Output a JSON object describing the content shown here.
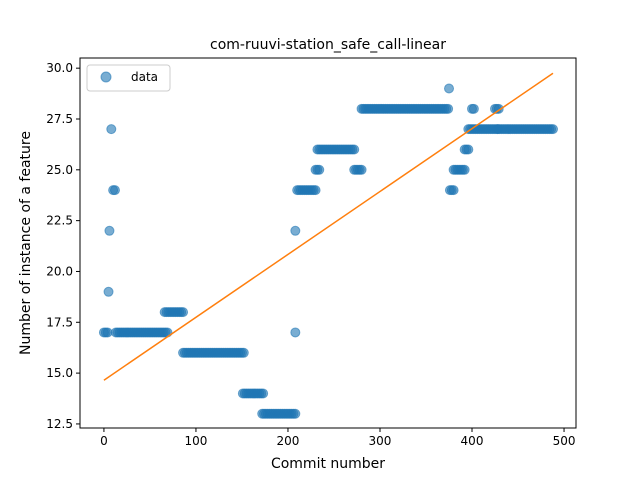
{
  "chart_data": {
    "type": "scatter",
    "title": "com-ruuvi-station_safe_call-linear",
    "xlabel": "Commit number",
    "ylabel": "Number of instance of a feature",
    "xlim": [
      -26,
      513
    ],
    "ylim": [
      12.3,
      30.5
    ],
    "x_ticks": [
      0,
      100,
      200,
      300,
      400,
      500
    ],
    "y_ticks": [
      12.5,
      15.0,
      17.5,
      20.0,
      22.5,
      25.0,
      27.5,
      30.0
    ],
    "x_tick_labels": [
      "0",
      "100",
      "200",
      "300",
      "400",
      "500"
    ],
    "y_tick_labels": [
      "12.5",
      "15.0",
      "17.5",
      "20.0",
      "22.5",
      "25.0",
      "27.5",
      "30.0"
    ],
    "grid": false,
    "legend_position": "top-left",
    "series": [
      {
        "name": "data",
        "marker": "circle",
        "color": "#1f77b4",
        "segments": [
          {
            "x_start": 0,
            "x_end": 4,
            "y": 17
          },
          {
            "x_start": 5,
            "x_end": 5,
            "y": 19
          },
          {
            "x_start": 6,
            "x_end": 7,
            "y": 22
          },
          {
            "x_start": 8,
            "x_end": 9,
            "y": 27
          },
          {
            "x_start": 10,
            "x_end": 12,
            "y": 24
          },
          {
            "x_start": 13,
            "x_end": 70,
            "y": 17
          },
          {
            "x_start": 66,
            "x_end": 86,
            "y": 18
          },
          {
            "x_start": 86,
            "x_end": 152,
            "y": 16
          },
          {
            "x_start": 151,
            "x_end": 173,
            "y": 14
          },
          {
            "x_start": 172,
            "x_end": 208,
            "y": 13
          },
          {
            "x_start": 208,
            "x_end": 208,
            "y": 17
          },
          {
            "x_start": 208,
            "x_end": 208,
            "y": 22
          },
          {
            "x_start": 210,
            "x_end": 231,
            "y": 24
          },
          {
            "x_start": 230,
            "x_end": 234,
            "y": 25
          },
          {
            "x_start": 232,
            "x_end": 272,
            "y": 26
          },
          {
            "x_start": 272,
            "x_end": 280,
            "y": 25
          },
          {
            "x_start": 280,
            "x_end": 375,
            "y": 28
          },
          {
            "x_start": 375,
            "x_end": 375,
            "y": 29
          },
          {
            "x_start": 376,
            "x_end": 380,
            "y": 24
          },
          {
            "x_start": 380,
            "x_end": 392,
            "y": 25
          },
          {
            "x_start": 392,
            "x_end": 396,
            "y": 26
          },
          {
            "x_start": 396,
            "x_end": 428,
            "y": 27
          },
          {
            "x_start": 400,
            "x_end": 402,
            "y": 28
          },
          {
            "x_start": 425,
            "x_end": 430,
            "y": 28
          },
          {
            "x_start": 428,
            "x_end": 488,
            "y": 27
          }
        ]
      },
      {
        "name": "",
        "type": "line",
        "color": "#ff7f0e",
        "x": [
          0,
          488
        ],
        "y": [
          14.65,
          29.75
        ]
      }
    ],
    "legend": [
      "data"
    ]
  }
}
